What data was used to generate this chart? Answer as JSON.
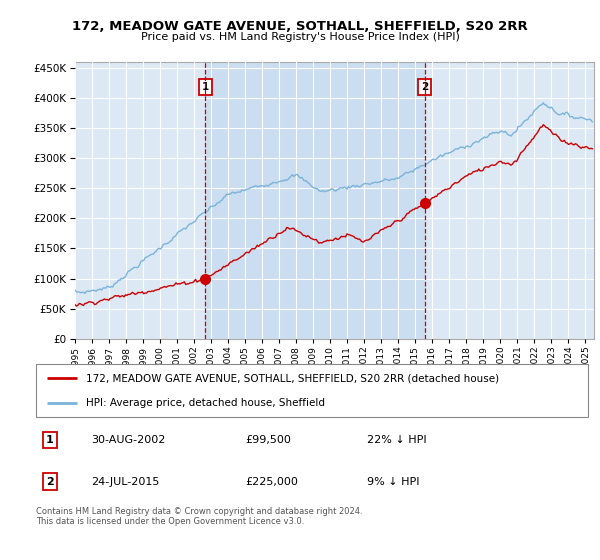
{
  "title": "172, MEADOW GATE AVENUE, SOTHALL, SHEFFIELD, S20 2RR",
  "subtitle": "Price paid vs. HM Land Registry's House Price Index (HPI)",
  "plot_bg_color": "#dce9f5",
  "shade_color": "#c5d8ee",
  "ylim": [
    0,
    460000
  ],
  "yticks": [
    0,
    50000,
    100000,
    150000,
    200000,
    250000,
    300000,
    350000,
    400000,
    450000
  ],
  "xlim_start": 1995.0,
  "xlim_end": 2025.5,
  "sale1_date": 2002.66,
  "sale1_price": 99500,
  "sale1_label": "1",
  "sale2_date": 2015.56,
  "sale2_price": 225000,
  "sale2_label": "2",
  "legend_line1": "172, MEADOW GATE AVENUE, SOTHALL, SHEFFIELD, S20 2RR (detached house)",
  "legend_line2": "HPI: Average price, detached house, Sheffield",
  "table_row1": [
    "1",
    "30-AUG-2002",
    "£99,500",
    "22% ↓ HPI"
  ],
  "table_row2": [
    "2",
    "24-JUL-2015",
    "£225,000",
    "9% ↓ HPI"
  ],
  "footer": "Contains HM Land Registry data © Crown copyright and database right 2024.\nThis data is licensed under the Open Government Licence v3.0.",
  "hpi_color": "#7ab4d8",
  "price_color": "#cc0000",
  "vline_color": "#cc0000",
  "box_color": "#cc0000",
  "grid_color": "#ffffff"
}
